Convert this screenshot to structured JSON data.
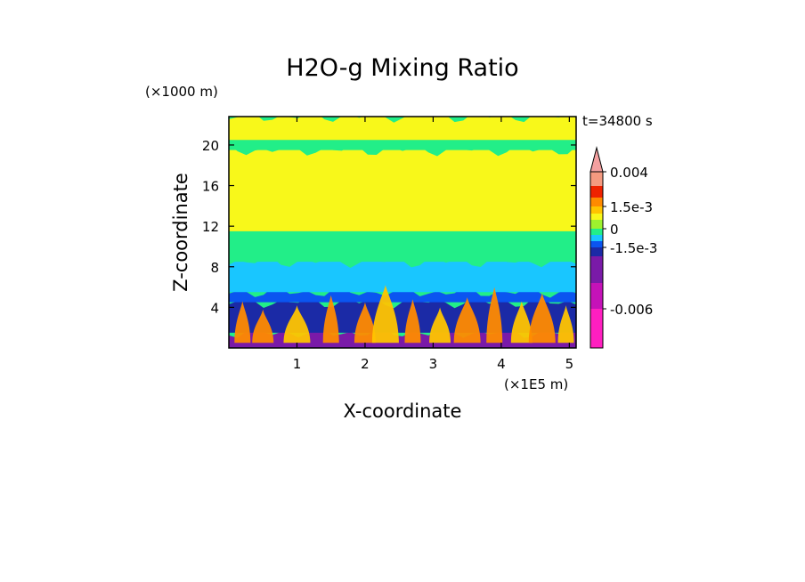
{
  "chart_data": {
    "type": "heatmap",
    "title": "H2O-g Mixing Ratio",
    "xlabel": "X-coordinate",
    "ylabel": "Z-coordinate",
    "x_unit": "(×1E5 m)",
    "y_unit": "(×1000 m)",
    "time_label": "t=34800 s",
    "xlim": [
      0,
      5.1
    ],
    "ylim": [
      0,
      22.8
    ],
    "x_ticks": [
      1,
      2,
      3,
      4,
      5
    ],
    "y_ticks": [
      4,
      8,
      12,
      16,
      20
    ],
    "colorbar": {
      "labels": [
        {
          "text": "0.004",
          "value": 0.004
        },
        {
          "text": "1.5e-3",
          "value": 0.0015
        },
        {
          "text": "0",
          "value": 0
        },
        {
          "text": "-1.5e-3",
          "value": -0.0015
        },
        {
          "text": "-0.006",
          "value": -0.006
        }
      ],
      "bands": [
        {
          "min": -0.009,
          "max": -0.006,
          "color": "#ff1fc0"
        },
        {
          "min": -0.006,
          "max": -0.004,
          "color": "#c512b8"
        },
        {
          "min": -0.004,
          "max": -0.0025,
          "color": "#7a1aa8"
        },
        {
          "min": -0.0025,
          "max": -0.0015,
          "color": "#1b2aa6"
        },
        {
          "min": -0.0015,
          "max": -0.001,
          "color": "#0b55f0"
        },
        {
          "min": -0.001,
          "max": -0.0005,
          "color": "#19c6ff"
        },
        {
          "min": -0.0005,
          "max": 0.0,
          "color": "#22ee88"
        },
        {
          "min": 0.0,
          "max": 0.0005,
          "color": "#9ef22e"
        },
        {
          "min": 0.0005,
          "max": 0.001,
          "color": "#f8f81a"
        },
        {
          "min": 0.001,
          "max": 0.0015,
          "color": "#ffc400"
        },
        {
          "min": 0.0015,
          "max": 0.002,
          "color": "#ff8a00"
        },
        {
          "min": 0.002,
          "max": 0.003,
          "color": "#ee2200"
        },
        {
          "min": 0.003,
          "max": 0.004,
          "color": "#f49a80"
        }
      ],
      "extend": "max"
    },
    "field_layers": [
      {
        "z": [
          0,
          1.5
        ],
        "band": "#7a1aa8"
      },
      {
        "z": [
          1.5,
          4.5
        ],
        "band": "#1b2aa6"
      },
      {
        "z": [
          4.5,
          5.5
        ],
        "band": "#0b55f0"
      },
      {
        "z": [
          5.5,
          8.5
        ],
        "band": "#19c6ff"
      },
      {
        "z": [
          8.5,
          11.5
        ],
        "band": "#22ee88"
      },
      {
        "z": [
          11.5,
          19.5
        ],
        "band": "#f8f81a"
      },
      {
        "z": [
          19.5,
          20.5
        ],
        "band": "#22ee88"
      },
      {
        "z": [
          20.5,
          22.8
        ],
        "band": "#f8f81a"
      }
    ],
    "plumes": [
      {
        "x": 0.2,
        "z": 4.6,
        "band": "#ff8a00"
      },
      {
        "x": 0.5,
        "z": 3.8,
        "band": "#ff8a00"
      },
      {
        "x": 1.0,
        "z": 4.2,
        "band": "#ffc400"
      },
      {
        "x": 1.5,
        "z": 5.2,
        "band": "#ff8a00"
      },
      {
        "x": 2.0,
        "z": 4.5,
        "band": "#ff8a00"
      },
      {
        "x": 2.3,
        "z": 6.2,
        "band": "#ffc400"
      },
      {
        "x": 2.7,
        "z": 4.8,
        "band": "#ff8a00"
      },
      {
        "x": 3.1,
        "z": 4.0,
        "band": "#ffc400"
      },
      {
        "x": 3.5,
        "z": 5.0,
        "band": "#ff8a00"
      },
      {
        "x": 3.9,
        "z": 6.0,
        "band": "#ff8a00"
      },
      {
        "x": 4.3,
        "z": 4.6,
        "band": "#ffc400"
      },
      {
        "x": 4.6,
        "z": 5.4,
        "band": "#ff8a00"
      },
      {
        "x": 4.95,
        "z": 4.2,
        "band": "#ffc400"
      }
    ]
  }
}
